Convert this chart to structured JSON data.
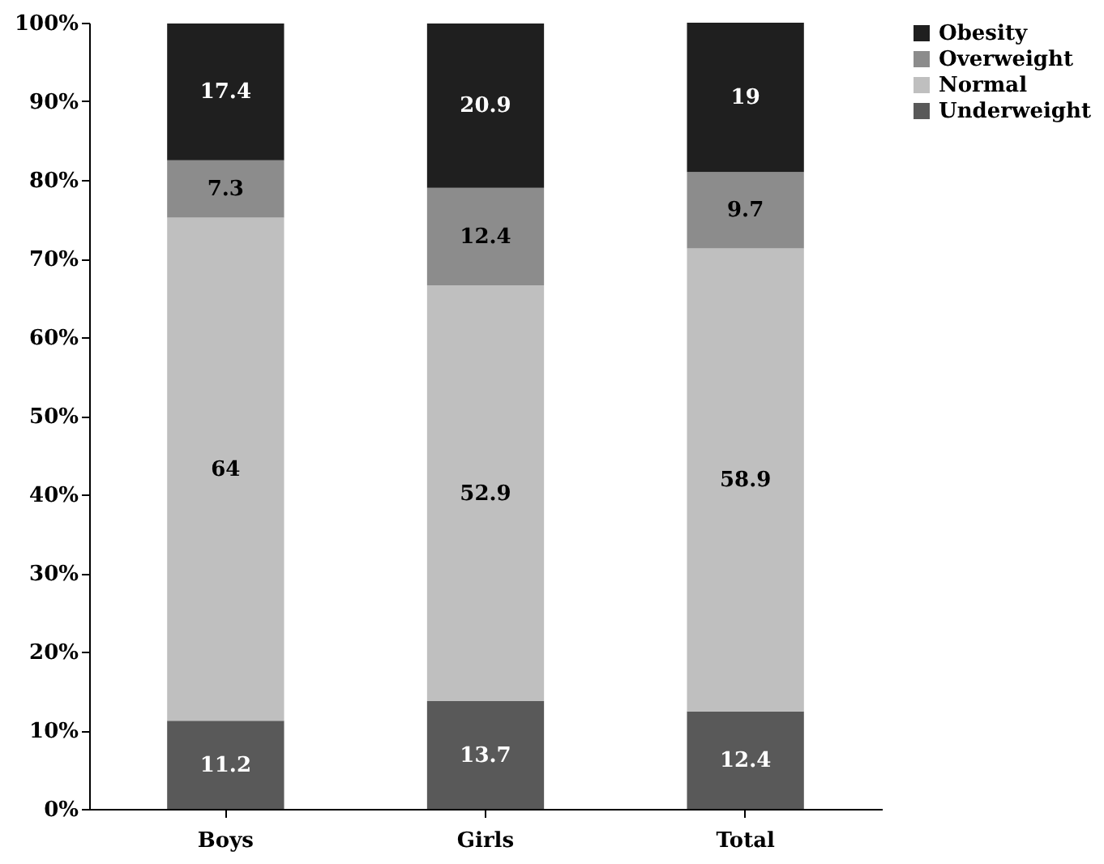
{
  "chart_data": {
    "type": "bar",
    "stacked": true,
    "categories": [
      "Boys",
      "Girls",
      "Total"
    ],
    "series": [
      {
        "name": "Underweight",
        "color": "#595959",
        "values": [
          11.2,
          13.7,
          12.4
        ]
      },
      {
        "name": "Normal",
        "color": "#bfbfbf",
        "values": [
          64,
          52.9,
          58.9
        ]
      },
      {
        "name": "Overweight",
        "color": "#8c8c8c",
        "values": [
          7.3,
          12.4,
          9.7
        ]
      },
      {
        "name": "Obesity",
        "color": "#1f1f1f",
        "values": [
          17.4,
          20.9,
          19
        ]
      }
    ],
    "ylim": [
      0,
      100
    ],
    "yticks": [
      {
        "value": 0,
        "label": "0%"
      },
      {
        "value": 10,
        "label": "10%"
      },
      {
        "value": 20,
        "label": "20%"
      },
      {
        "value": 30,
        "label": "30%"
      },
      {
        "value": 40,
        "label": "40%"
      },
      {
        "value": 50,
        "label": "50%"
      },
      {
        "value": 60,
        "label": "60%"
      },
      {
        "value": 70,
        "label": "70%"
      },
      {
        "value": 80,
        "label": "80%"
      },
      {
        "value": 90,
        "label": "90%"
      },
      {
        "value": 100,
        "label": "100%"
      }
    ],
    "data_labels": true,
    "legend": "right",
    "grid": false
  }
}
